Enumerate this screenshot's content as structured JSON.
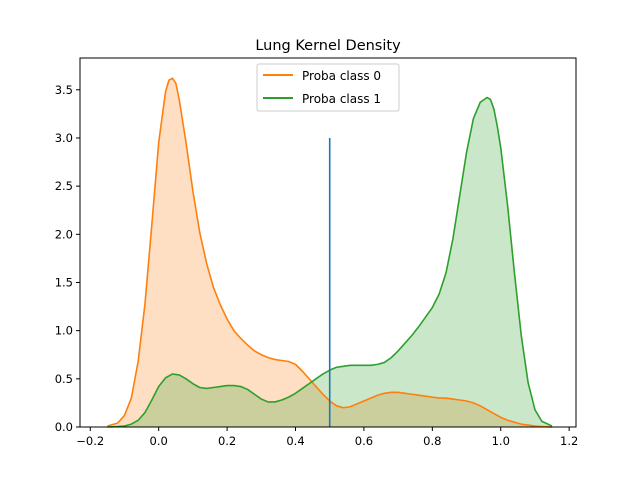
{
  "chart_data": {
    "type": "area",
    "title": "Lung Kernel Density",
    "xlabel": "",
    "ylabel": "",
    "xlim": [
      -0.23,
      1.22
    ],
    "ylim": [
      0.0,
      3.83
    ],
    "xticks": [
      -0.2,
      0.0,
      0.2,
      0.4,
      0.6,
      0.8,
      1.0,
      1.2
    ],
    "xtick_labels": [
      "−0.2",
      "0.0",
      "0.2",
      "0.4",
      "0.6",
      "0.8",
      "1.0",
      "1.2"
    ],
    "yticks": [
      0.0,
      0.5,
      1.0,
      1.5,
      2.0,
      2.5,
      3.0,
      3.5
    ],
    "ytick_labels": [
      "0.0",
      "0.5",
      "1.0",
      "1.5",
      "2.0",
      "2.5",
      "3.0",
      "3.5"
    ],
    "grid": false,
    "legend_position": "upper center",
    "series": [
      {
        "name": "Proba class 0",
        "color": "#ff7f0e",
        "fill": "#ffd9bc",
        "x": [
          -0.15,
          -0.12,
          -0.1,
          -0.08,
          -0.06,
          -0.04,
          -0.02,
          0.0,
          0.02,
          0.03,
          0.04,
          0.05,
          0.06,
          0.08,
          0.1,
          0.12,
          0.14,
          0.16,
          0.18,
          0.2,
          0.22,
          0.24,
          0.26,
          0.28,
          0.3,
          0.32,
          0.34,
          0.36,
          0.38,
          0.4,
          0.42,
          0.44,
          0.46,
          0.48,
          0.5,
          0.52,
          0.54,
          0.56,
          0.58,
          0.6,
          0.62,
          0.64,
          0.66,
          0.68,
          0.7,
          0.72,
          0.74,
          0.76,
          0.78,
          0.8,
          0.82,
          0.84,
          0.86,
          0.88,
          0.9,
          0.92,
          0.94,
          0.96,
          0.98,
          1.0,
          1.02,
          1.04,
          1.06,
          1.08,
          1.1,
          1.12,
          1.15
        ],
        "y": [
          0.01,
          0.04,
          0.12,
          0.3,
          0.68,
          1.28,
          2.1,
          2.95,
          3.48,
          3.6,
          3.62,
          3.57,
          3.4,
          2.95,
          2.45,
          2.02,
          1.7,
          1.45,
          1.27,
          1.12,
          1.0,
          0.92,
          0.85,
          0.79,
          0.75,
          0.72,
          0.7,
          0.69,
          0.68,
          0.65,
          0.58,
          0.5,
          0.42,
          0.34,
          0.27,
          0.22,
          0.2,
          0.21,
          0.24,
          0.27,
          0.3,
          0.33,
          0.35,
          0.36,
          0.36,
          0.35,
          0.34,
          0.33,
          0.32,
          0.31,
          0.3,
          0.3,
          0.29,
          0.28,
          0.27,
          0.25,
          0.22,
          0.18,
          0.14,
          0.1,
          0.07,
          0.05,
          0.03,
          0.02,
          0.01,
          0.005,
          0.0
        ]
      },
      {
        "name": "Proba class 1",
        "color": "#2ca02c",
        "fill": "#cbe7c9",
        "x": [
          -0.15,
          -0.12,
          -0.1,
          -0.08,
          -0.06,
          -0.04,
          -0.02,
          0.0,
          0.02,
          0.04,
          0.06,
          0.08,
          0.1,
          0.12,
          0.14,
          0.16,
          0.18,
          0.2,
          0.22,
          0.24,
          0.26,
          0.28,
          0.3,
          0.32,
          0.34,
          0.36,
          0.38,
          0.4,
          0.42,
          0.44,
          0.46,
          0.48,
          0.5,
          0.52,
          0.54,
          0.56,
          0.58,
          0.6,
          0.62,
          0.64,
          0.66,
          0.68,
          0.7,
          0.72,
          0.74,
          0.76,
          0.78,
          0.8,
          0.82,
          0.84,
          0.86,
          0.88,
          0.9,
          0.92,
          0.94,
          0.96,
          0.97,
          0.98,
          0.99,
          1.0,
          1.02,
          1.04,
          1.06,
          1.08,
          1.1,
          1.12,
          1.15
        ],
        "y": [
          0.0,
          0.005,
          0.01,
          0.03,
          0.07,
          0.15,
          0.28,
          0.42,
          0.51,
          0.55,
          0.54,
          0.5,
          0.45,
          0.41,
          0.4,
          0.41,
          0.42,
          0.43,
          0.43,
          0.42,
          0.39,
          0.34,
          0.29,
          0.26,
          0.26,
          0.28,
          0.31,
          0.35,
          0.4,
          0.45,
          0.5,
          0.55,
          0.59,
          0.62,
          0.63,
          0.64,
          0.64,
          0.64,
          0.64,
          0.65,
          0.67,
          0.72,
          0.79,
          0.87,
          0.95,
          1.04,
          1.14,
          1.24,
          1.38,
          1.6,
          1.95,
          2.4,
          2.85,
          3.2,
          3.37,
          3.42,
          3.4,
          3.3,
          3.12,
          2.9,
          2.3,
          1.6,
          0.95,
          0.46,
          0.18,
          0.06,
          0.01
        ]
      }
    ],
    "vline": {
      "x": 0.5,
      "y_range": [
        0.0,
        3.0
      ],
      "color": "#1f77b4"
    }
  }
}
